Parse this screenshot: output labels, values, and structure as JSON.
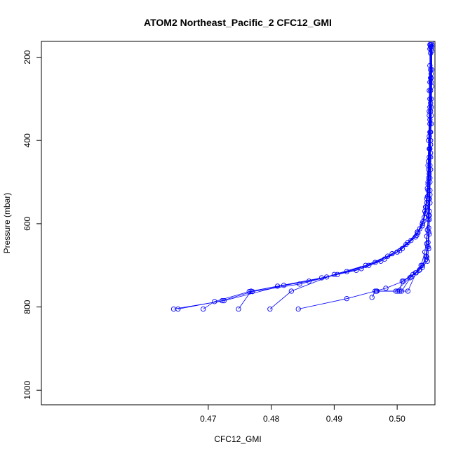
{
  "chart_data": {
    "type": "line",
    "title": "ATOM2 Northeast_Pacific_2 CFC12_GMI",
    "xlabel": "CFC12_GMI",
    "ylabel": "Pressure (mbar)",
    "xlim": [
      0.4435,
      0.506
    ],
    "ylim": [
      1035,
      162
    ],
    "y_reversed": true,
    "xticks": [
      0.47,
      0.48,
      0.49,
      0.5
    ],
    "xtick_labels": [
      "0.47",
      "0.48",
      "0.49",
      "0.50"
    ],
    "yticks": [
      200,
      400,
      600,
      800,
      1000
    ],
    "ytick_labels": [
      "200",
      "400",
      "600",
      "800",
      "1000"
    ],
    "grid": false,
    "line_color": "#0000ff",
    "marker": "open-circle",
    "series": [
      {
        "points": [
          [
            0.5052,
            170
          ],
          [
            0.5052,
            220
          ],
          [
            0.5051,
            280
          ],
          [
            0.5051,
            340
          ],
          [
            0.505,
            400
          ],
          [
            0.505,
            450
          ],
          [
            0.5049,
            500
          ],
          [
            0.5047,
            540
          ],
          [
            0.5044,
            570
          ],
          [
            0.504,
            600
          ],
          [
            0.5031,
            628
          ],
          [
            0.5004,
            665
          ],
          [
            0.4974,
            690
          ],
          [
            0.4935,
            712
          ],
          [
            0.488,
            730
          ],
          [
            0.482,
            748
          ],
          [
            0.4725,
            785
          ],
          [
            0.4645,
            805
          ]
        ]
      },
      {
        "points": [
          [
            0.5053,
            170
          ],
          [
            0.5053,
            230
          ],
          [
            0.5052,
            300
          ],
          [
            0.5052,
            360
          ],
          [
            0.5051,
            420
          ],
          [
            0.505,
            470
          ],
          [
            0.5049,
            520
          ],
          [
            0.5046,
            560
          ],
          [
            0.5041,
            595
          ],
          [
            0.5032,
            620
          ],
          [
            0.5017,
            645
          ],
          [
            0.4992,
            672
          ],
          [
            0.4955,
            700
          ],
          [
            0.4905,
            722
          ],
          [
            0.4845,
            745
          ],
          [
            0.477,
            763
          ],
          [
            0.4722,
            785
          ],
          [
            0.4652,
            805
          ]
        ]
      },
      {
        "points": [
          [
            0.5054,
            165
          ],
          [
            0.5054,
            240
          ],
          [
            0.5053,
            310
          ],
          [
            0.5052,
            380
          ],
          [
            0.5051,
            440
          ],
          [
            0.505,
            490
          ],
          [
            0.5048,
            535
          ],
          [
            0.5045,
            575
          ],
          [
            0.504,
            605
          ],
          [
            0.5029,
            632
          ],
          [
            0.5008,
            660
          ],
          [
            0.498,
            685
          ],
          [
            0.4943,
            708
          ],
          [
            0.4888,
            728
          ],
          [
            0.481,
            750
          ],
          [
            0.4765,
            763
          ],
          [
            0.471,
            787
          ],
          [
            0.4692,
            805
          ]
        ]
      },
      {
        "points": [
          [
            0.5053,
            175
          ],
          [
            0.5053,
            250
          ],
          [
            0.5052,
            320
          ],
          [
            0.5051,
            390
          ],
          [
            0.505,
            450
          ],
          [
            0.5049,
            505
          ],
          [
            0.5047,
            550
          ],
          [
            0.5043,
            585
          ],
          [
            0.5036,
            612
          ],
          [
            0.5022,
            640
          ],
          [
            0.5,
            668
          ],
          [
            0.4965,
            693
          ],
          [
            0.492,
            715
          ],
          [
            0.486,
            738
          ],
          [
            0.4768,
            762
          ],
          [
            0.4748,
            805
          ]
        ]
      },
      {
        "points": [
          [
            0.5052,
            180
          ],
          [
            0.5052,
            260
          ],
          [
            0.5051,
            330
          ],
          [
            0.505,
            400
          ],
          [
            0.5049,
            460
          ],
          [
            0.5048,
            515
          ],
          [
            0.5045,
            560
          ],
          [
            0.5041,
            595
          ],
          [
            0.5033,
            622
          ],
          [
            0.5014,
            650
          ],
          [
            0.4985,
            678
          ],
          [
            0.495,
            700
          ],
          [
            0.49,
            722
          ],
          [
            0.4832,
            762
          ],
          [
            0.4798,
            805
          ]
        ]
      },
      {
        "points": [
          [
            0.5055,
            170
          ],
          [
            0.5055,
            230
          ],
          [
            0.5054,
            300
          ],
          [
            0.5054,
            360
          ],
          [
            0.5053,
            430
          ],
          [
            0.5052,
            490
          ],
          [
            0.5051,
            540
          ],
          [
            0.505,
            580
          ],
          [
            0.5048,
            615
          ],
          [
            0.5047,
            648
          ],
          [
            0.5046,
            678
          ],
          [
            0.504,
            700
          ],
          [
            0.5029,
            718
          ],
          [
            0.501,
            738
          ],
          [
            0.4982,
            755
          ],
          [
            0.492,
            780
          ],
          [
            0.4843,
            805
          ]
        ]
      },
      {
        "points": [
          [
            0.5055,
            175
          ],
          [
            0.5054,
            250
          ],
          [
            0.5054,
            320
          ],
          [
            0.5053,
            380
          ],
          [
            0.5053,
            440
          ],
          [
            0.5052,
            500
          ],
          [
            0.5052,
            550
          ],
          [
            0.5051,
            590
          ],
          [
            0.5051,
            625
          ],
          [
            0.505,
            660
          ],
          [
            0.5048,
            690
          ],
          [
            0.5035,
            712
          ],
          [
            0.502,
            730
          ],
          [
            0.4998,
            762
          ],
          [
            0.4965,
            762
          ],
          [
            0.496,
            777
          ]
        ]
      },
      {
        "points": [
          [
            0.5054,
            180
          ],
          [
            0.5054,
            260
          ],
          [
            0.5053,
            330
          ],
          [
            0.5053,
            400
          ],
          [
            0.5052,
            460
          ],
          [
            0.5052,
            520
          ],
          [
            0.5051,
            570
          ],
          [
            0.505,
            610
          ],
          [
            0.5049,
            645
          ],
          [
            0.5047,
            680
          ],
          [
            0.504,
            705
          ],
          [
            0.5025,
            722
          ],
          [
            0.5008,
            738
          ],
          [
            0.5004,
            762
          ],
          [
            0.4968,
            762
          ]
        ]
      },
      {
        "points": [
          [
            0.5055,
            185
          ],
          [
            0.5055,
            270
          ],
          [
            0.5054,
            340
          ],
          [
            0.5053,
            410
          ],
          [
            0.5053,
            470
          ],
          [
            0.5052,
            530
          ],
          [
            0.5051,
            580
          ],
          [
            0.505,
            620
          ],
          [
            0.5049,
            655
          ],
          [
            0.5046,
            685
          ],
          [
            0.5036,
            710
          ],
          [
            0.5022,
            728
          ],
          [
            0.5007,
            762
          ],
          [
            0.4967,
            762
          ]
        ]
      },
      {
        "points": [
          [
            0.5053,
            190
          ],
          [
            0.5053,
            280
          ],
          [
            0.5052,
            350
          ],
          [
            0.5052,
            420
          ],
          [
            0.5051,
            480
          ],
          [
            0.505,
            540
          ],
          [
            0.5049,
            590
          ],
          [
            0.5047,
            630
          ],
          [
            0.5044,
            668
          ],
          [
            0.5038,
            700
          ],
          [
            0.503,
            718
          ],
          [
            0.5017,
            762
          ],
          [
            0.5001,
            762
          ]
        ]
      }
    ]
  }
}
